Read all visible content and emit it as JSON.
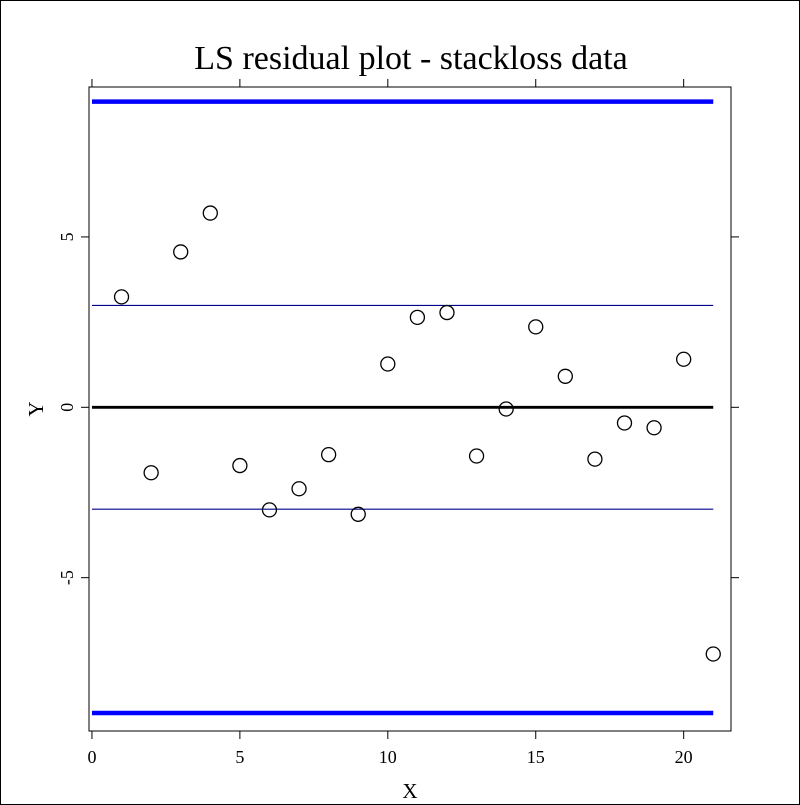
{
  "chart_data": {
    "type": "scatter",
    "title": "LS residual plot - stackloss data",
    "xlabel": "X",
    "ylabel": "Y",
    "xlim": [
      -0.1,
      21.6
    ],
    "ylim": [
      -9.5,
      9.4
    ],
    "x_ticks": [
      0,
      5,
      10,
      15,
      20
    ],
    "y_ticks": [
      -5,
      0,
      5
    ],
    "grid": false,
    "legend": "none",
    "point_color": "#000000",
    "points": [
      {
        "x": 1,
        "y": 3.24
      },
      {
        "x": 2,
        "y": -1.92
      },
      {
        "x": 3,
        "y": 4.56
      },
      {
        "x": 4,
        "y": 5.7
      },
      {
        "x": 5,
        "y": -1.71
      },
      {
        "x": 6,
        "y": -3.01
      },
      {
        "x": 7,
        "y": -2.39
      },
      {
        "x": 8,
        "y": -1.39
      },
      {
        "x": 9,
        "y": -3.14
      },
      {
        "x": 10,
        "y": 1.27
      },
      {
        "x": 11,
        "y": 2.64
      },
      {
        "x": 12,
        "y": 2.78
      },
      {
        "x": 13,
        "y": -1.43
      },
      {
        "x": 14,
        "y": -0.05
      },
      {
        "x": 15,
        "y": 2.36
      },
      {
        "x": 16,
        "y": 0.91
      },
      {
        "x": 17,
        "y": -1.52
      },
      {
        "x": 18,
        "y": -0.46
      },
      {
        "x": 19,
        "y": -0.6
      },
      {
        "x": 20,
        "y": 1.41
      },
      {
        "x": 21,
        "y": -7.24
      }
    ],
    "reference_lines": [
      {
        "y": 8.97,
        "color": "#0000ff",
        "style": "thick"
      },
      {
        "y": 2.99,
        "color": "#00008b",
        "style": "thin"
      },
      {
        "y": 0,
        "color": "#000000",
        "style": "medium"
      },
      {
        "y": -2.99,
        "color": "#00008b",
        "style": "thin"
      },
      {
        "y": -8.97,
        "color": "#0000ff",
        "style": "thick"
      }
    ],
    "reference_x_range": [
      0,
      21
    ]
  }
}
